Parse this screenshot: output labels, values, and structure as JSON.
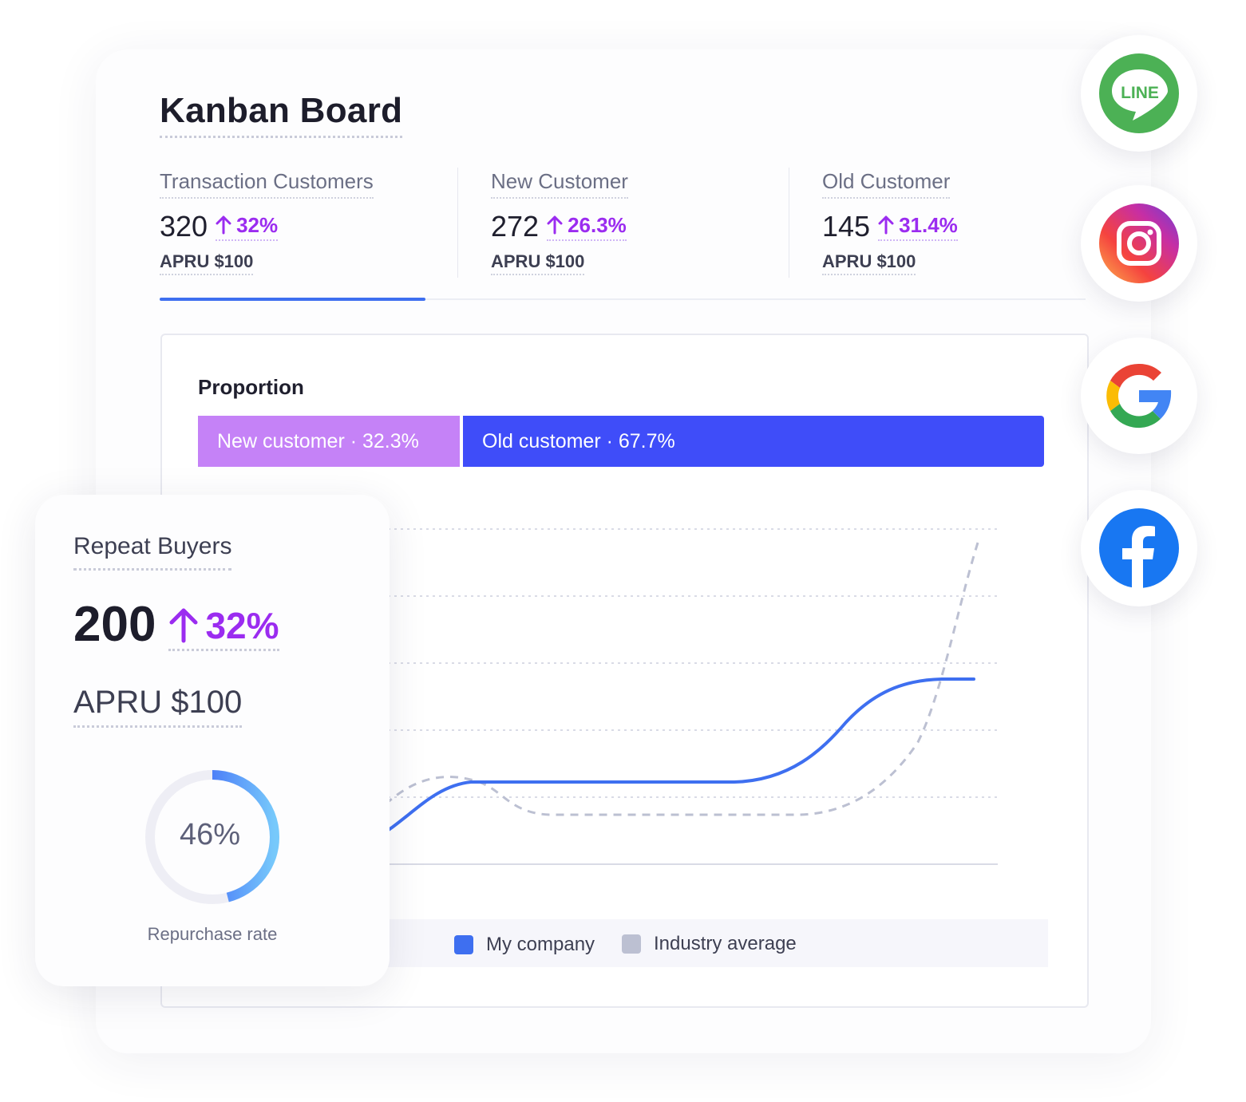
{
  "page": {
    "title": "Kanban Board"
  },
  "stats": [
    {
      "label": "Transaction Customers",
      "value": "320",
      "change": "32%",
      "sub": "APRU $100"
    },
    {
      "label": "New Customer",
      "value": "272",
      "change": "26.3%",
      "sub": "APRU $100"
    },
    {
      "label": "Old Customer",
      "value": "145",
      "change": "31.4%",
      "sub": "APRU $100"
    }
  ],
  "proportion": {
    "title": "Proportion",
    "new_label": "New customer · 32.3%",
    "old_label": "Old customer · 67.7%",
    "new_share": 32.3,
    "old_share": 67.7
  },
  "legend": {
    "my_company": "My company",
    "industry": "Industry average"
  },
  "repeat_buyers": {
    "title": "Repeat Buyers",
    "value": "200",
    "change": "32%",
    "apru": "APRU $100",
    "rate_label": "46%",
    "rate": 46,
    "rate_caption": "Repurchase rate"
  },
  "colors": {
    "accent_purple": "#9b2cf0",
    "new_bar": "#c582f7",
    "old_bar": "#3f4df9",
    "my_company": "#3e6ff0",
    "industry": "#bcc0d2"
  },
  "social_icons": [
    "line-icon",
    "instagram-icon",
    "google-icon",
    "facebook-icon"
  ],
  "social": {
    "line_text": "LINE"
  }
}
